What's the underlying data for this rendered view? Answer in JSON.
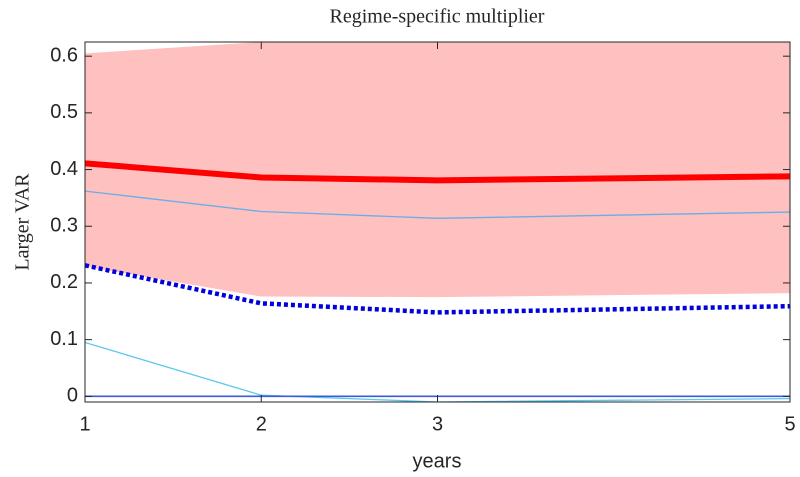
{
  "chart_data": {
    "type": "line",
    "title": "Regime-specific multiplier",
    "xlabel": "years",
    "ylabel": "Larger VAR",
    "x": [
      1,
      2,
      3,
      5
    ],
    "xlim": [
      1,
      5
    ],
    "xticks": [
      1,
      2,
      3,
      5
    ],
    "ylim": [
      -0.01,
      0.625
    ],
    "yticks": [
      0,
      0.1,
      0.2,
      0.3,
      0.4,
      0.5,
      0.6
    ],
    "band": {
      "color": "#ffc0c0",
      "upper": [
        0.605,
        0.625,
        0.625,
        0.625
      ],
      "lower": [
        0.229,
        0.176,
        0.175,
        0.182
      ]
    },
    "series": [
      {
        "color": "#ff0000",
        "style": "thick",
        "values": [
          0.411,
          0.386,
          0.381,
          0.388
        ]
      },
      {
        "color": "#6aaee8",
        "style": "thin",
        "values": [
          0.362,
          0.326,
          0.314,
          0.325
        ]
      },
      {
        "color": "#0000dd",
        "style": "dotted",
        "values": [
          0.231,
          0.164,
          0.148,
          0.159
        ]
      },
      {
        "color": "#5bc8ee",
        "style": "thin",
        "values": [
          0.095,
          0.002,
          -0.01,
          -0.004
        ]
      },
      {
        "color": "#3b5bdb",
        "style": "solid",
        "values": [
          0,
          0,
          0,
          0
        ]
      }
    ]
  }
}
